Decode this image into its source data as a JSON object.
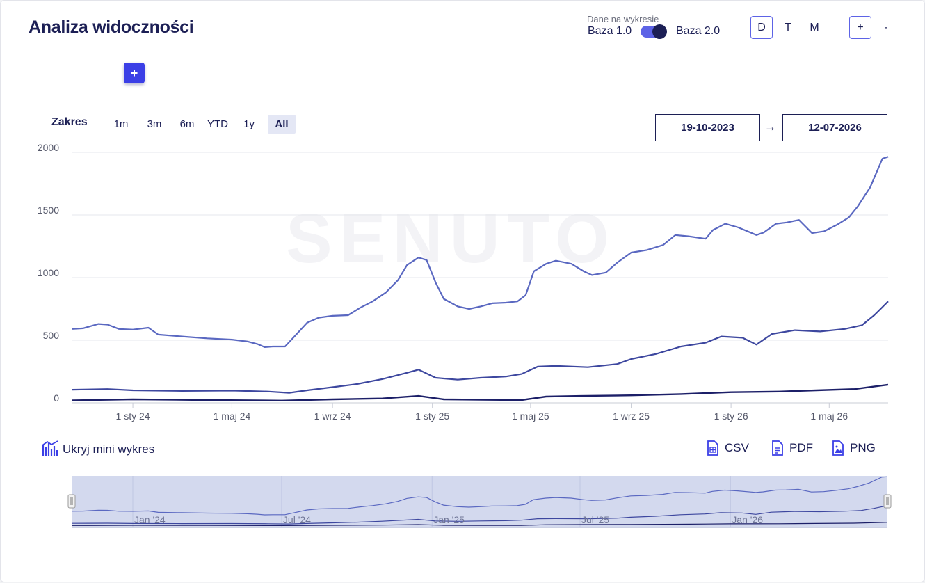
{
  "header": {
    "title": "Analiza widoczności",
    "base_caption": "Dane na wykresie",
    "base1_label": "Baza 1.0",
    "base2_label": "Baza 2.0",
    "granularity": [
      "D",
      "T",
      "M"
    ],
    "zoom_in": "+",
    "zoom_out": "-",
    "add_label": "+"
  },
  "range": {
    "label": "Zakres",
    "options": [
      "1m",
      "3m",
      "6m",
      "YTD",
      "1y",
      "All"
    ],
    "active": "All",
    "from": "19-10-2023",
    "arrow": "→",
    "to": "12-07-2026"
  },
  "watermark": "SENUTO",
  "footer": {
    "hide_mini": "Ukryj mini wykres",
    "csv": "CSV",
    "pdf": "PDF",
    "png": "PNG"
  },
  "navigator_labels": [
    "Jan '24",
    "Jul '24",
    "Jan '25",
    "Jul '25",
    "Jan '26"
  ],
  "colors": {
    "series1": "#5a68c1",
    "series2": "#3d479f",
    "series3": "#1c1f68",
    "accent": "#3b3fe6",
    "navigator_fill": "#d3d9ee"
  },
  "chart_data": {
    "type": "line",
    "x_start": "2023-10-19",
    "x_end": "2026-07-12",
    "ylim": [
      0,
      2000
    ],
    "yticks": [
      0,
      500,
      1000,
      1500,
      2000
    ],
    "xticks": [
      {
        "date": "2024-01-01",
        "label": "1 sty 24"
      },
      {
        "date": "2024-05-01",
        "label": "1 maj 24"
      },
      {
        "date": "2024-09-01",
        "label": "1 wrz 24"
      },
      {
        "date": "2025-01-01",
        "label": "1 sty 25"
      },
      {
        "date": "2025-05-01",
        "label": "1 maj 25"
      },
      {
        "date": "2025-09-01",
        "label": "1 wrz 25"
      },
      {
        "date": "2026-01-01",
        "label": "1 sty 26"
      },
      {
        "date": "2026-05-01",
        "label": "1 maj 26"
      }
    ],
    "grid": true,
    "series": [
      {
        "points": [
          [
            "2023-10-19",
            590
          ],
          [
            "2023-11-01",
            595
          ],
          [
            "2023-11-20",
            630
          ],
          [
            "2023-12-01",
            625
          ],
          [
            "2023-12-15",
            590
          ],
          [
            "2024-01-01",
            585
          ],
          [
            "2024-01-20",
            600
          ],
          [
            "2024-02-01",
            545
          ],
          [
            "2024-03-01",
            530
          ],
          [
            "2024-04-01",
            515
          ],
          [
            "2024-05-01",
            505
          ],
          [
            "2024-05-20",
            490
          ],
          [
            "2024-06-01",
            470
          ],
          [
            "2024-06-10",
            445
          ],
          [
            "2024-06-20",
            450
          ],
          [
            "2024-07-05",
            450
          ],
          [
            "2024-07-15",
            520
          ],
          [
            "2024-08-01",
            640
          ],
          [
            "2024-08-15",
            680
          ],
          [
            "2024-09-01",
            695
          ],
          [
            "2024-09-20",
            700
          ],
          [
            "2024-10-05",
            760
          ],
          [
            "2024-10-20",
            810
          ],
          [
            "2024-11-05",
            880
          ],
          [
            "2024-11-20",
            980
          ],
          [
            "2024-12-01",
            1100
          ],
          [
            "2024-12-15",
            1160
          ],
          [
            "2024-12-25",
            1140
          ],
          [
            "2025-01-05",
            960
          ],
          [
            "2025-01-15",
            830
          ],
          [
            "2025-02-01",
            770
          ],
          [
            "2025-02-15",
            750
          ],
          [
            "2025-03-01",
            770
          ],
          [
            "2025-03-15",
            795
          ],
          [
            "2025-04-01",
            800
          ],
          [
            "2025-04-15",
            810
          ],
          [
            "2025-04-25",
            860
          ],
          [
            "2025-05-05",
            1050
          ],
          [
            "2025-05-20",
            1110
          ],
          [
            "2025-06-01",
            1135
          ],
          [
            "2025-06-20",
            1110
          ],
          [
            "2025-07-05",
            1050
          ],
          [
            "2025-07-15",
            1020
          ],
          [
            "2025-08-01",
            1040
          ],
          [
            "2025-08-15",
            1120
          ],
          [
            "2025-09-01",
            1200
          ],
          [
            "2025-09-20",
            1220
          ],
          [
            "2025-10-10",
            1260
          ],
          [
            "2025-10-25",
            1340
          ],
          [
            "2025-11-10",
            1330
          ],
          [
            "2025-12-01",
            1310
          ],
          [
            "2025-12-10",
            1380
          ],
          [
            "2025-12-25",
            1430
          ],
          [
            "2026-01-10",
            1400
          ],
          [
            "2026-02-01",
            1340
          ],
          [
            "2026-02-10",
            1360
          ],
          [
            "2026-02-25",
            1430
          ],
          [
            "2026-03-10",
            1440
          ],
          [
            "2026-03-25",
            1460
          ],
          [
            "2026-04-10",
            1355
          ],
          [
            "2026-04-25",
            1370
          ],
          [
            "2026-05-10",
            1420
          ],
          [
            "2026-05-25",
            1480
          ],
          [
            "2026-06-05",
            1570
          ],
          [
            "2026-06-20",
            1720
          ],
          [
            "2026-07-05",
            1950
          ],
          [
            "2026-07-12",
            1965
          ]
        ]
      },
      {
        "points": [
          [
            "2023-10-19",
            105
          ],
          [
            "2023-12-01",
            110
          ],
          [
            "2024-01-01",
            100
          ],
          [
            "2024-03-01",
            95
          ],
          [
            "2024-05-01",
            98
          ],
          [
            "2024-06-15",
            90
          ],
          [
            "2024-07-10",
            80
          ],
          [
            "2024-08-01",
            100
          ],
          [
            "2024-09-01",
            125
          ],
          [
            "2024-10-01",
            150
          ],
          [
            "2024-11-01",
            190
          ],
          [
            "2024-12-01",
            240
          ],
          [
            "2024-12-15",
            265
          ],
          [
            "2025-01-05",
            200
          ],
          [
            "2025-02-01",
            185
          ],
          [
            "2025-03-01",
            200
          ],
          [
            "2025-04-01",
            210
          ],
          [
            "2025-04-20",
            230
          ],
          [
            "2025-05-10",
            290
          ],
          [
            "2025-06-01",
            295
          ],
          [
            "2025-07-10",
            285
          ],
          [
            "2025-08-15",
            310
          ],
          [
            "2025-09-01",
            350
          ],
          [
            "2025-10-01",
            390
          ],
          [
            "2025-11-01",
            450
          ],
          [
            "2025-12-01",
            480
          ],
          [
            "2025-12-20",
            530
          ],
          [
            "2026-01-15",
            520
          ],
          [
            "2026-02-01",
            465
          ],
          [
            "2026-02-20",
            550
          ],
          [
            "2026-03-20",
            580
          ],
          [
            "2026-04-20",
            570
          ],
          [
            "2026-05-20",
            590
          ],
          [
            "2026-06-10",
            620
          ],
          [
            "2026-06-25",
            700
          ],
          [
            "2026-07-12",
            810
          ]
        ]
      },
      {
        "points": [
          [
            "2023-10-19",
            20
          ],
          [
            "2024-01-01",
            28
          ],
          [
            "2024-04-01",
            22
          ],
          [
            "2024-07-01",
            18
          ],
          [
            "2024-09-01",
            28
          ],
          [
            "2024-11-01",
            35
          ],
          [
            "2024-12-15",
            55
          ],
          [
            "2025-01-15",
            28
          ],
          [
            "2025-03-01",
            25
          ],
          [
            "2025-04-20",
            22
          ],
          [
            "2025-05-20",
            50
          ],
          [
            "2025-07-01",
            55
          ],
          [
            "2025-09-01",
            60
          ],
          [
            "2025-11-01",
            70
          ],
          [
            "2026-01-01",
            85
          ],
          [
            "2026-03-01",
            90
          ],
          [
            "2026-04-15",
            100
          ],
          [
            "2026-06-01",
            110
          ],
          [
            "2026-07-12",
            145
          ]
        ]
      }
    ]
  }
}
